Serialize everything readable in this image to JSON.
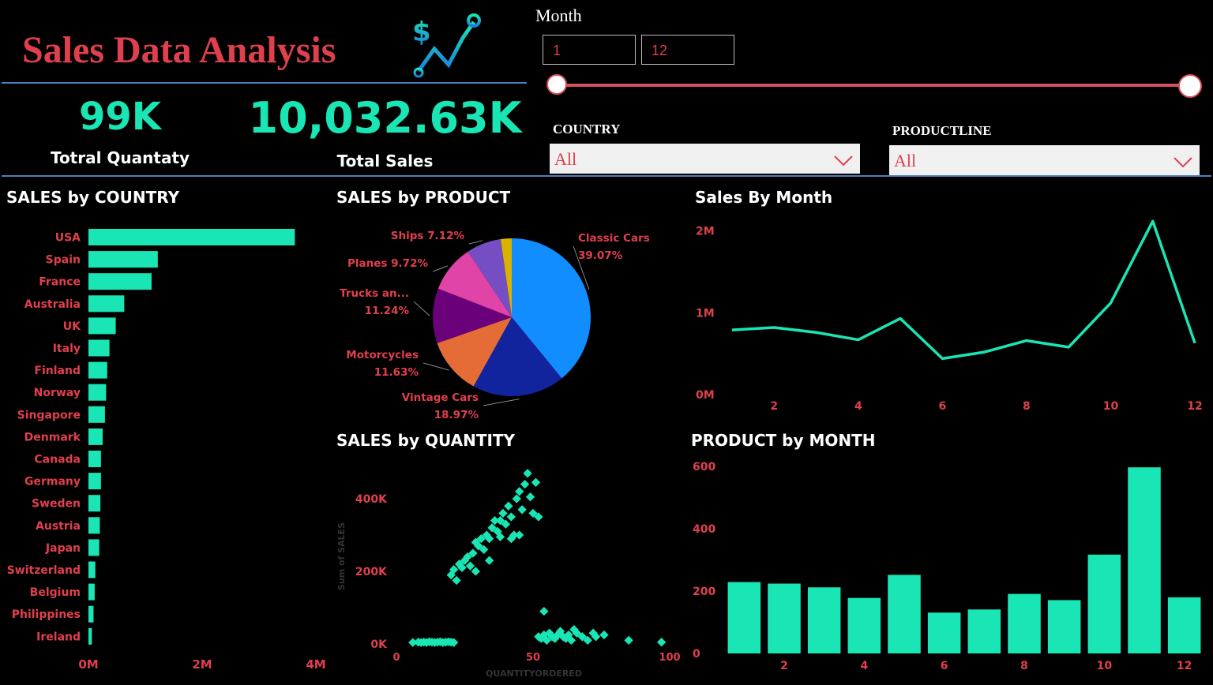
{
  "header": {
    "title": "Sales Data Analysis",
    "logo_icon": "chart-dollar-icon"
  },
  "kpis": {
    "quantity_value": "99K",
    "quantity_label": "Totral Quantaty",
    "sales_value": "10,032.63K",
    "sales_label": "Total Sales"
  },
  "filters": {
    "month_label": "Month",
    "month_min": "1",
    "month_max": "12",
    "country_label": "COUNTRY",
    "country_value": "All",
    "productline_label": "PRODUCTLINE",
    "productline_value": "All"
  },
  "colors": {
    "accent": "#19e6b4",
    "label_red": "#e0404d",
    "divider_blue": "#4a7fc1"
  },
  "chart_data": [
    {
      "type": "bar",
      "orientation": "horizontal",
      "title": "SALES by COUNTRY",
      "categories": [
        "USA",
        "Spain",
        "France",
        "Australia",
        "UK",
        "Italy",
        "Finland",
        "Norway",
        "Singapore",
        "Denmark",
        "Canada",
        "Germany",
        "Sweden",
        "Austria",
        "Japan",
        "Switzerland",
        "Belgium",
        "Philippines",
        "Ireland"
      ],
      "values": [
        3.63,
        1.22,
        1.11,
        0.63,
        0.48,
        0.37,
        0.33,
        0.31,
        0.29,
        0.25,
        0.22,
        0.22,
        0.21,
        0.2,
        0.19,
        0.12,
        0.11,
        0.09,
        0.06
      ],
      "unit": "M",
      "xticks": [
        "0M",
        "2M",
        "4M"
      ],
      "xlim": [
        0,
        4
      ]
    },
    {
      "type": "pie",
      "title": "SALES by PRODUCT",
      "slices": [
        {
          "label": "Classic Cars",
          "pct": "39.07%",
          "value": 39.07,
          "color": "#118dff"
        },
        {
          "label": "Vintage Cars",
          "pct": "18.97%",
          "value": 18.97,
          "color": "#12239e"
        },
        {
          "label": "Motorcycles",
          "pct": "11.63%",
          "value": 11.63,
          "color": "#e66c37"
        },
        {
          "label": "Trucks an...",
          "pct": "11.24%",
          "value": 11.24,
          "color": "#6b007b"
        },
        {
          "label": "Planes",
          "pct": "9.72%",
          "value": 9.72,
          "color": "#e044a7"
        },
        {
          "label": "Ships",
          "pct": "7.12%",
          "value": 7.12,
          "color": "#744ec2"
        },
        {
          "label": "",
          "pct": "",
          "value": 2.25,
          "color": "#d9b300"
        }
      ]
    },
    {
      "type": "line",
      "title": "Sales By Month",
      "x": [
        1,
        2,
        3,
        4,
        5,
        6,
        7,
        8,
        9,
        10,
        11,
        12
      ],
      "values": [
        0.79,
        0.82,
        0.76,
        0.67,
        0.93,
        0.44,
        0.52,
        0.66,
        0.58,
        1.12,
        2.12,
        0.63
      ],
      "unit": "M",
      "yticks": [
        "0M",
        "1M",
        "2M"
      ],
      "ylim": [
        0,
        2.2
      ],
      "xticks": [
        2,
        4,
        6,
        8,
        10,
        12
      ]
    },
    {
      "type": "scatter",
      "title": "SALES by QUANTITY",
      "xlabel": "QUANTITYORDERED",
      "ylabel": "Sum of SALES",
      "xlim": [
        0,
        100
      ],
      "ylim": [
        0,
        500
      ],
      "yticks": [
        "0K",
        "200K",
        "400K"
      ],
      "xticks": [
        0,
        50,
        100
      ],
      "points": [
        [
          6,
          4
        ],
        [
          8,
          5
        ],
        [
          9,
          4
        ],
        [
          10,
          5
        ],
        [
          11,
          4
        ],
        [
          12,
          6
        ],
        [
          13,
          5
        ],
        [
          14,
          4
        ],
        [
          15,
          5
        ],
        [
          16,
          6
        ],
        [
          17,
          4
        ],
        [
          18,
          5
        ],
        [
          19,
          6
        ],
        [
          20,
          5
        ],
        [
          21,
          4
        ],
        [
          20,
          190
        ],
        [
          21,
          205
        ],
        [
          22,
          175
        ],
        [
          23,
          220
        ],
        [
          24,
          210
        ],
        [
          25,
          230
        ],
        [
          26,
          240
        ],
        [
          27,
          215
        ],
        [
          28,
          250
        ],
        [
          29,
          280
        ],
        [
          30,
          270
        ],
        [
          31,
          290
        ],
        [
          32,
          260
        ],
        [
          33,
          300
        ],
        [
          34,
          230
        ],
        [
          35,
          320
        ],
        [
          36,
          340
        ],
        [
          37,
          310
        ],
        [
          38,
          295
        ],
        [
          39,
          360
        ],
        [
          40,
          330
        ],
        [
          41,
          380
        ],
        [
          42,
          350
        ],
        [
          43,
          300
        ],
        [
          44,
          400
        ],
        [
          45,
          420
        ],
        [
          46,
          370
        ],
        [
          47,
          440
        ],
        [
          48,
          470
        ],
        [
          49,
          405
        ],
        [
          50,
          360
        ],
        [
          51,
          445
        ],
        [
          52,
          350
        ],
        [
          34,
          290
        ],
        [
          29,
          200
        ],
        [
          45,
          300
        ],
        [
          42,
          290
        ],
        [
          38,
          340
        ],
        [
          52,
          20
        ],
        [
          53,
          15
        ],
        [
          54,
          25
        ],
        [
          55,
          10
        ],
        [
          56,
          30
        ],
        [
          57,
          20
        ],
        [
          58,
          15
        ],
        [
          59,
          25
        ],
        [
          60,
          35
        ],
        [
          61,
          20
        ],
        [
          62,
          15
        ],
        [
          63,
          25
        ],
        [
          64,
          10
        ],
        [
          65,
          40
        ],
        [
          66,
          30
        ],
        [
          68,
          20
        ],
        [
          70,
          10
        ],
        [
          72,
          30
        ],
        [
          73,
          20
        ],
        [
          76,
          25
        ],
        [
          85,
          10
        ],
        [
          54,
          90
        ],
        [
          97,
          5
        ]
      ]
    },
    {
      "type": "bar",
      "title": "PRODUCT by MONTH",
      "categories": [
        1,
        2,
        3,
        4,
        5,
        6,
        7,
        8,
        9,
        10,
        11,
        12
      ],
      "values": [
        229,
        224,
        212,
        178,
        252,
        131,
        141,
        191,
        171,
        317,
        597,
        180
      ],
      "yticks": [
        0,
        200,
        400,
        600
      ],
      "ylim": [
        0,
        600
      ],
      "xticks": [
        2,
        4,
        6,
        8,
        10,
        12
      ]
    }
  ]
}
